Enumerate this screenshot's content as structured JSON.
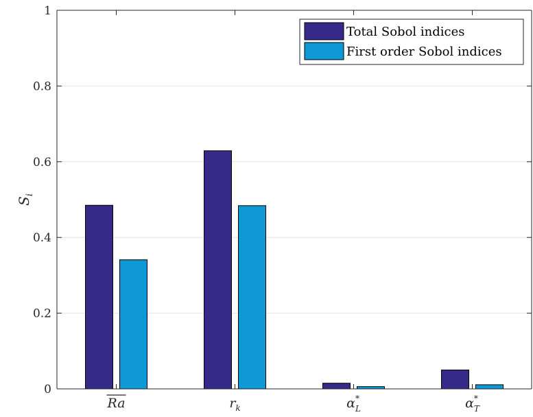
{
  "chart_data": {
    "type": "bar",
    "categories": [
      "Ra",
      "r",
      "α",
      "α"
    ],
    "category_subscripts": [
      "",
      "k",
      "L",
      "T"
    ],
    "category_superscripts": [
      "",
      "",
      "*",
      "*"
    ],
    "category_overline": [
      true,
      false,
      false,
      false
    ],
    "series": [
      {
        "name": "Total Sobol indices",
        "values": [
          0.485,
          0.629,
          0.015,
          0.05
        ],
        "color": "#352a87"
      },
      {
        "name": "First order Sobol indices",
        "values": [
          0.341,
          0.484,
          0.006,
          0.011
        ],
        "color": "#0f98d6"
      }
    ],
    "ylabel": "S",
    "ylabel_subscript": "i",
    "ylim": [
      0,
      1
    ],
    "yticks": [
      0,
      0.2,
      0.4,
      0.6,
      0.8,
      1
    ],
    "ytick_labels": [
      "0",
      "0.2",
      "0.4",
      "0.6",
      "0.8",
      "1"
    ],
    "grid": "horizontal",
    "legend_position": "top-right"
  }
}
